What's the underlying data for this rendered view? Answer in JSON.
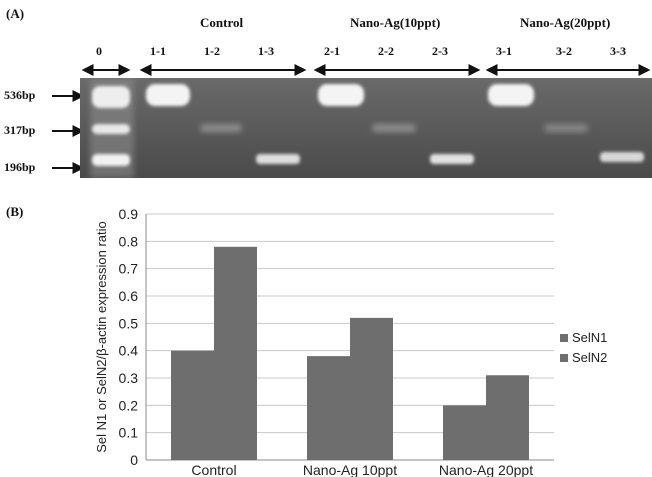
{
  "panel_a": {
    "label": "(A)",
    "groups": [
      {
        "label": "Control"
      },
      {
        "label": "Nano-Ag(10ppt)"
      },
      {
        "label": "Nano-Ag(20ppt)"
      }
    ],
    "lanes": [
      "0",
      "1-1",
      "1-2",
      "1-3",
      "2-1",
      "2-2",
      "2-3",
      "3-1",
      "3-2",
      "3-3"
    ],
    "bp_markers": [
      "536bp",
      "317bp",
      "196bp"
    ]
  },
  "panel_b": {
    "label": "(B)"
  },
  "colors": {
    "gel_bg": "#5a5a5a",
    "band": "#f2f2f2",
    "bar_seln1": "#6e6e6e",
    "bar_seln2": "#6e6e6e",
    "gridline": "#c8c8c8",
    "axis": "#888888"
  },
  "chart_data": {
    "type": "bar",
    "categories": [
      "Control",
      "Nano-Ag 10ppt",
      "Nano-Ag 20ppt"
    ],
    "series": [
      {
        "name": "SelN1",
        "values": [
          0.4,
          0.38,
          0.2
        ]
      },
      {
        "name": "SelN2",
        "values": [
          0.78,
          0.52,
          0.31
        ]
      }
    ],
    "title": "",
    "xlabel": "",
    "ylabel": "Sel N1 or SelN2/β-actin expression ratio",
    "ylim": [
      0,
      0.9
    ],
    "yticks": [
      "0",
      "0.1",
      "0.2",
      "0.3",
      "0.4",
      "0.5",
      "0.6",
      "0.7",
      "0.8",
      "0.9"
    ],
    "grid": true,
    "legend": "right"
  }
}
